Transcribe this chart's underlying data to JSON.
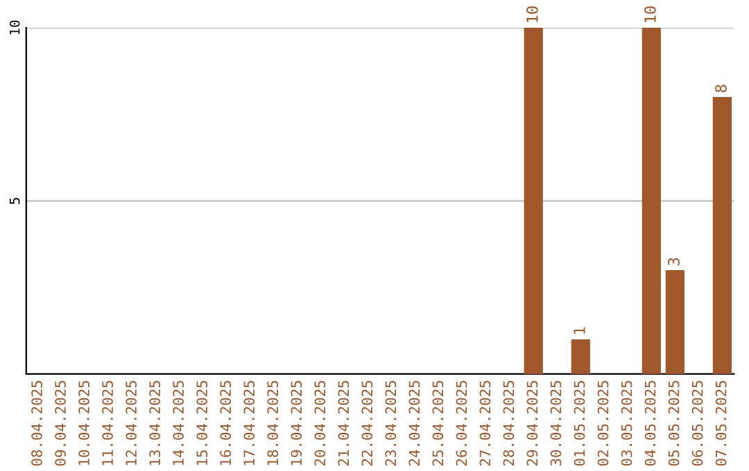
{
  "chart_data": {
    "type": "bar",
    "categories": [
      "08.04.2025",
      "09.04.2025",
      "10.04.2025",
      "11.04.2025",
      "12.04.2025",
      "13.04.2025",
      "14.04.2025",
      "15.04.2025",
      "16.04.2025",
      "17.04.2025",
      "18.04.2025",
      "19.04.2025",
      "20.04.2025",
      "21.04.2025",
      "22.04.2025",
      "23.04.2025",
      "24.04.2025",
      "25.04.2025",
      "26.04.2025",
      "27.04.2025",
      "28.04.2025",
      "29.04.2025",
      "30.04.2025",
      "01.05.2025",
      "02.05.2025",
      "03.05.2025",
      "04.05.2025",
      "05.05.2025",
      "06.05.2025",
      "07.05.2025"
    ],
    "values": [
      0,
      0,
      0,
      0,
      0,
      0,
      0,
      0,
      0,
      0,
      0,
      0,
      0,
      0,
      0,
      0,
      0,
      0,
      0,
      0,
      0,
      10,
      0,
      1,
      0,
      0,
      10,
      3,
      0,
      8
    ],
    "value_labels": [
      null,
      null,
      null,
      null,
      null,
      null,
      null,
      null,
      null,
      null,
      null,
      null,
      null,
      null,
      null,
      null,
      null,
      null,
      null,
      null,
      null,
      "10",
      null,
      "1",
      null,
      null,
      "10",
      "3",
      null,
      "8"
    ],
    "color": "#a0582a",
    "ylim": [
      0,
      10
    ],
    "yticks": [
      5,
      10
    ],
    "grid": "y",
    "legend": false
  }
}
